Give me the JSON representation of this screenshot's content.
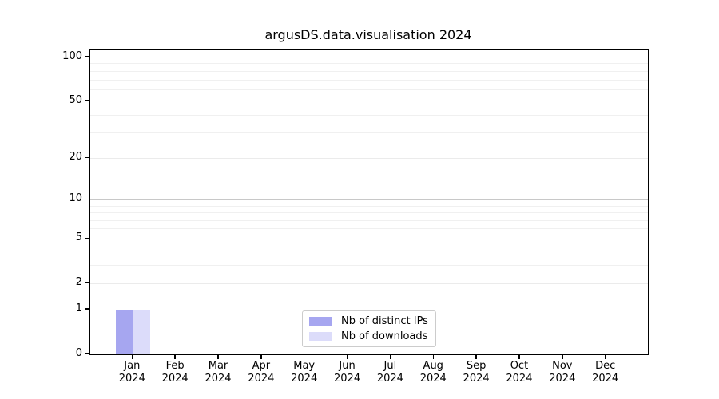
{
  "chart_data": {
    "type": "bar",
    "title": "argusDS.data.visualisation 2024",
    "categories": [
      "Jan 2024",
      "Feb 2024",
      "Mar 2024",
      "Apr 2024",
      "May 2024",
      "Jun 2024",
      "Jul 2024",
      "Aug 2024",
      "Sep 2024",
      "Oct 2024",
      "Nov 2024",
      "Dec 2024"
    ],
    "series": [
      {
        "name": "Nb of distinct IPs",
        "color": "#a6a6f0",
        "values": [
          1,
          0,
          0,
          0,
          0,
          0,
          0,
          0,
          0,
          0,
          0,
          0
        ]
      },
      {
        "name": "Nb of downloads",
        "color": "#dcdcfa",
        "values": [
          1,
          0,
          0,
          0,
          0,
          0,
          0,
          0,
          0,
          0,
          0,
          0
        ]
      }
    ],
    "xlabel": "",
    "ylabel": "",
    "yscale": "log1p",
    "ylim": [
      0,
      111.3
    ],
    "yticks_labeled": [
      0,
      1,
      2,
      5,
      10,
      20,
      50,
      100
    ],
    "grid_major_values": [
      1,
      10,
      100
    ],
    "grid_mid_values": [
      2,
      5,
      20,
      50
    ],
    "grid_minor_values": [
      3,
      4,
      6,
      7,
      8,
      9,
      30,
      40,
      60,
      70,
      80,
      90
    ],
    "grid": "horizontal",
    "legend_position": "lower center",
    "colors": {
      "grid_major": "#c8c8c8",
      "grid_mid": "#ebebeb",
      "grid_minor": "#f0f0f0",
      "spine": "#000000",
      "text": "#000000",
      "background": "#ffffff"
    }
  }
}
